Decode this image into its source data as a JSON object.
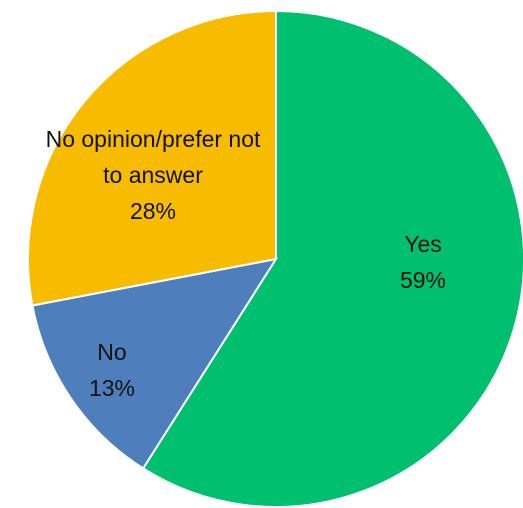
{
  "chart_data": {
    "type": "pie",
    "title": "",
    "start_angle_deg": 0,
    "direction": "clockwise",
    "slices": [
      {
        "label": "Yes",
        "value": 59,
        "percent_label": "59%",
        "color": "#00BF6F"
      },
      {
        "label": "No",
        "value": 13,
        "percent_label": "13%",
        "color": "#4F7EBD"
      },
      {
        "label": "No opinion/prefer not to answer",
        "value": 28,
        "percent_label": "28%",
        "color": "#F7BB00"
      }
    ]
  }
}
